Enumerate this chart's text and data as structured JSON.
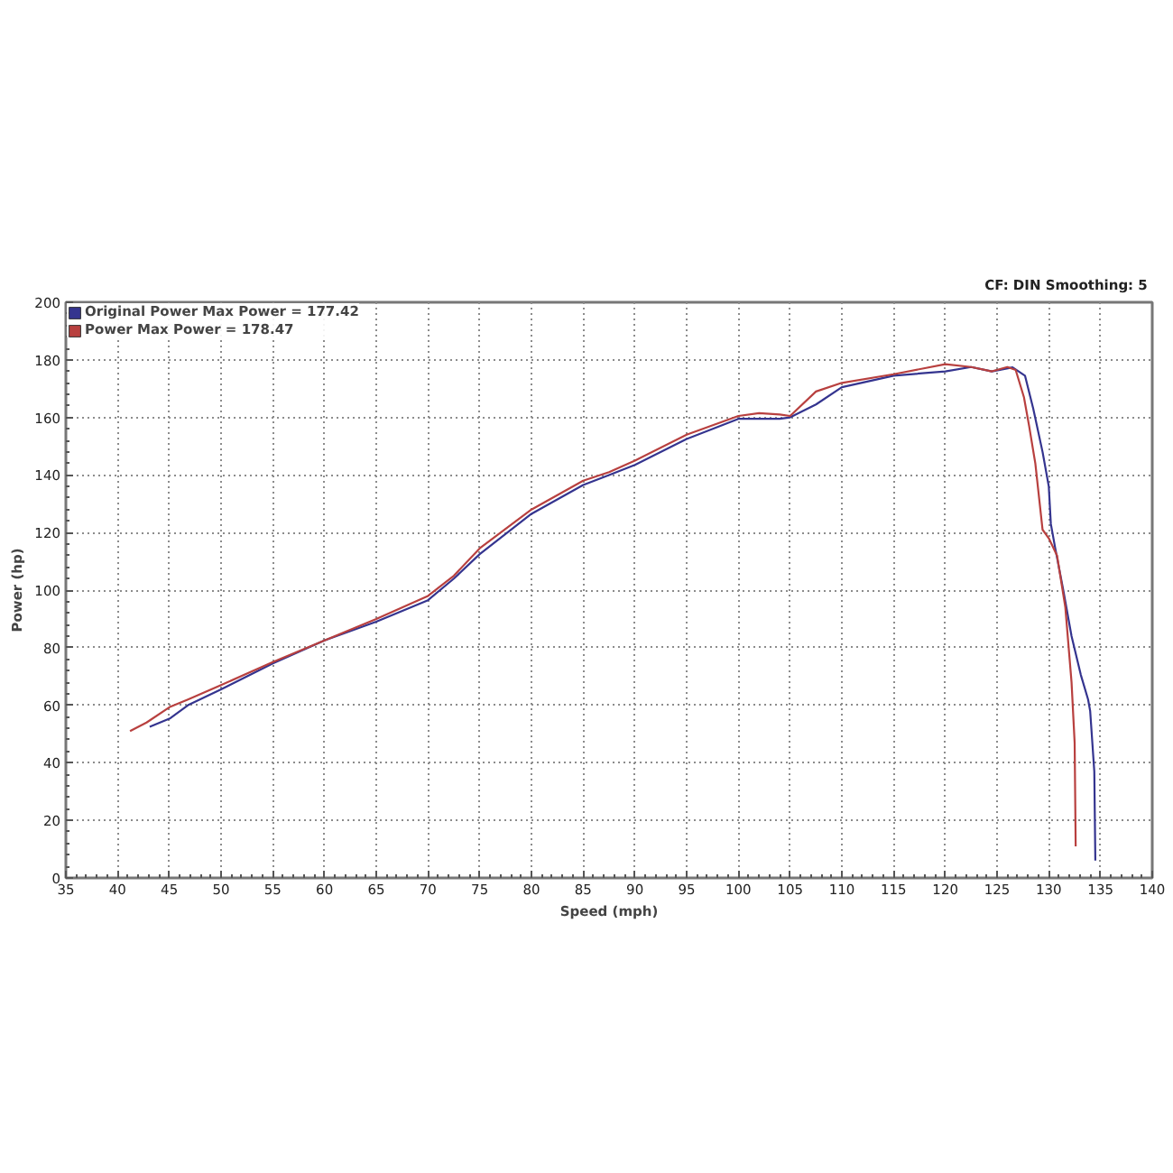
{
  "chart_data": {
    "type": "line",
    "xlabel": "Speed (mph)",
    "ylabel": "Power (hp)",
    "annotations": [
      "CF: DIN  Smoothing: 5"
    ],
    "xlim": [
      35,
      140
    ],
    "xticks": [
      35,
      40,
      45,
      50,
      55,
      60,
      65,
      70,
      75,
      80,
      85,
      90,
      95,
      100,
      105,
      110,
      115,
      120,
      125,
      130,
      135,
      140
    ],
    "ylim": [
      0,
      200
    ],
    "yticks": [
      0,
      20,
      40,
      60,
      80,
      100,
      120,
      140,
      160,
      180,
      200
    ],
    "grid": true,
    "legend": "top left",
    "line_style": "solid",
    "series": [
      {
        "name": "Original Power Max Power = 177.42",
        "color": "#34348f",
        "x": [
          43.1,
          45.1,
          46.8,
          50,
          55,
          60,
          65,
          70,
          72.5,
          75,
          80,
          85,
          87.5,
          90,
          95,
          100,
          102,
          104,
          105,
          107.5,
          110,
          115,
          120,
          122.5,
          124.5,
          126.5,
          127.7,
          128.5,
          129.4,
          130,
          130.2,
          130.6,
          131.4,
          132.2,
          133.1,
          133.8,
          134,
          134.4,
          134.5
        ],
        "values": [
          52.5,
          55.5,
          60,
          65.5,
          74.5,
          82.5,
          89,
          96.5,
          104,
          112.5,
          126.5,
          136.5,
          140,
          143.5,
          152.5,
          159.5,
          159.5,
          159.5,
          160,
          164.5,
          170.5,
          174.5,
          176,
          177.5,
          176,
          177.4,
          174.5,
          163,
          148,
          136,
          123,
          115,
          100,
          84,
          70.5,
          62,
          58,
          37,
          6
        ]
      },
      {
        "name": "Power Max Power = 178.47",
        "color": "#b8403f",
        "x": [
          41.2,
          42.8,
          45.1,
          46.8,
          50,
          55,
          60,
          65,
          70,
          72.5,
          75,
          80,
          85,
          87.5,
          90,
          95,
          100,
          102,
          104,
          105,
          107.5,
          110,
          115,
          120,
          122.5,
          124.5,
          126,
          126.8,
          127.6,
          128.1,
          128.7,
          129.4,
          130,
          130.8,
          131.6,
          132.2,
          132.5,
          132.6
        ],
        "values": [
          51,
          54,
          59.5,
          62,
          67,
          75,
          82.5,
          90,
          98,
          105,
          114.5,
          128,
          138,
          141,
          145,
          154,
          160.5,
          161.5,
          161,
          160.5,
          169,
          172,
          175,
          178.5,
          177.5,
          176,
          177.5,
          176.5,
          167,
          157,
          144,
          121,
          118,
          112,
          94,
          68,
          47,
          11
        ]
      }
    ]
  }
}
